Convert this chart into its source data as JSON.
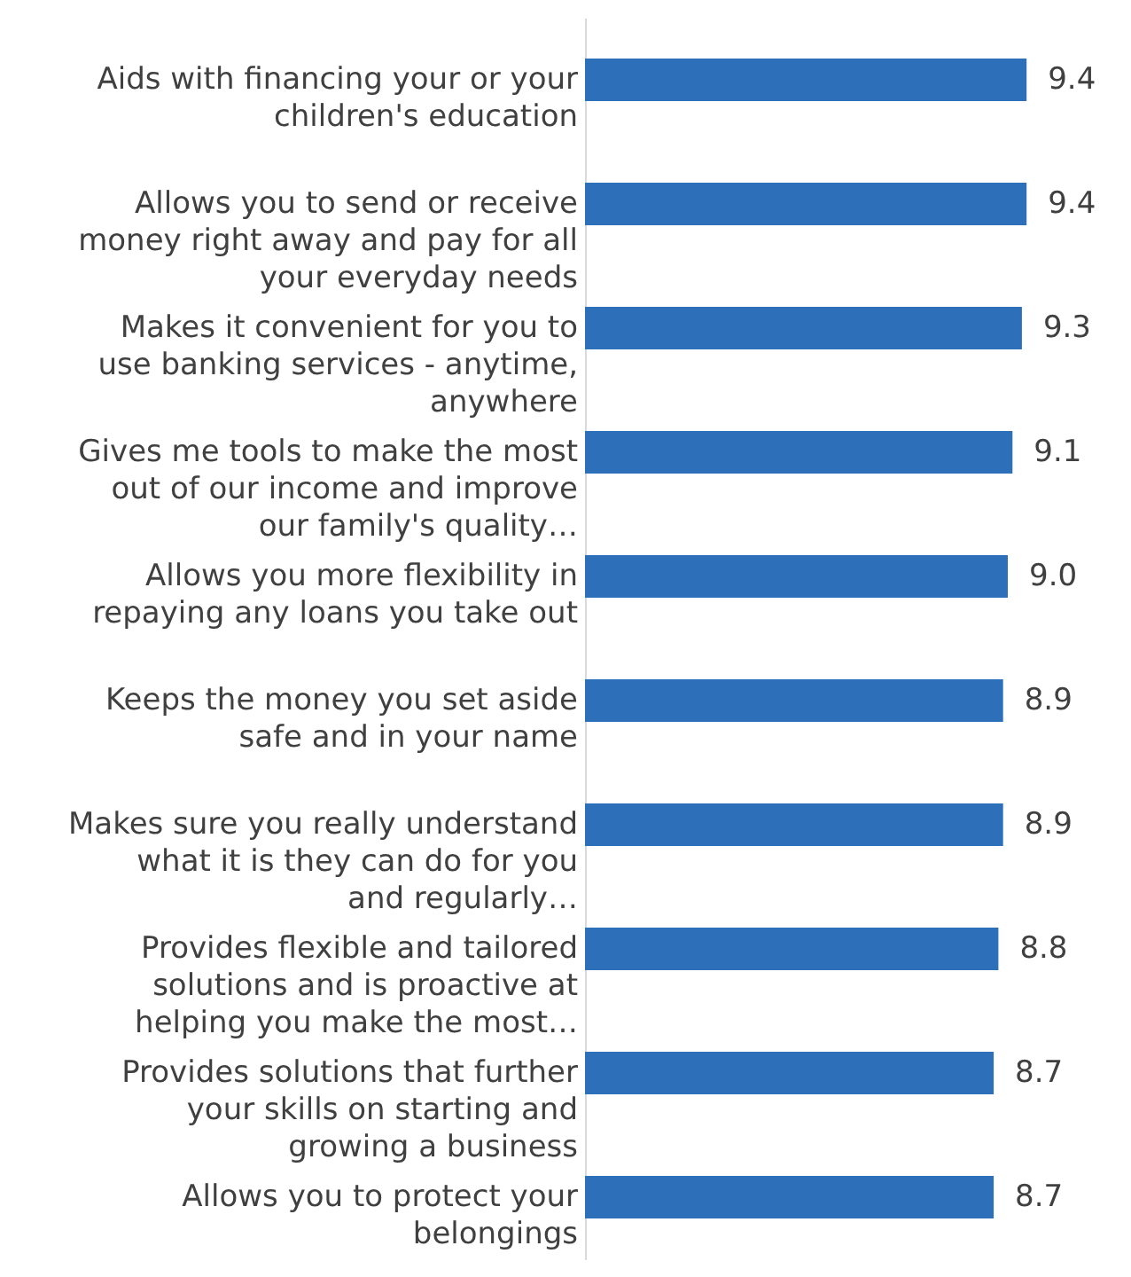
{
  "chart_data": {
    "type": "bar",
    "orientation": "horizontal",
    "color": "#2e6fba",
    "value_labels": [
      "9.4",
      "9.4",
      "9.3",
      "9.1",
      "9.0",
      "8.9",
      "8.9",
      "8.8",
      "8.7",
      "8.7"
    ],
    "categories": [
      "Aids with financing your or your children's education",
      "Allows you to send or receive money right away and pay for all your everyday needs",
      "Makes it convenient for you to use banking services - anytime, anywhere",
      "Gives me tools to make the most out of our income and improve our family's quality…",
      "Allows you more flexibility in repaying any loans you take out",
      "Keeps the money you set aside safe and in your name",
      "Makes sure you really understand what it is they can do for you and regularly…",
      "Provides flexible and tailored solutions and is proactive at helping you make the most…",
      "Provides solutions that further your skills on starting and growing a business",
      "Allows you to protect your belongings"
    ],
    "values": [
      9.4,
      9.4,
      9.3,
      9.1,
      9.0,
      8.9,
      8.9,
      8.8,
      8.7,
      8.7
    ]
  }
}
